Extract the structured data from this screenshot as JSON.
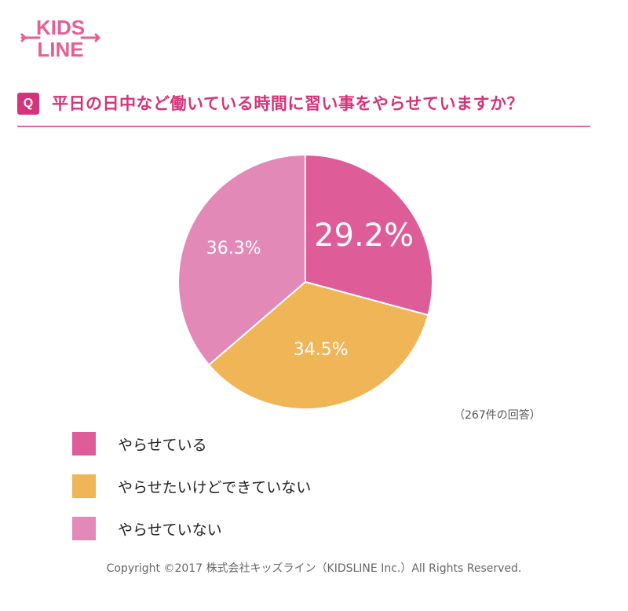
{
  "logo": {
    "line1": "KIDS",
    "line2": "LINE"
  },
  "question": {
    "badge": "Q",
    "text": "平日の日中など働いている時間に習い事をやらせていますか？"
  },
  "chart_data": {
    "type": "pie",
    "categories": [
      "やらせている",
      "やらせたいけどできていない",
      "やらせていない"
    ],
    "values": [
      29.2,
      34.5,
      36.3
    ],
    "labels": [
      "29.2%",
      "34.5%",
      "36.3%"
    ],
    "colors": [
      "#de5c98",
      "#f0b556",
      "#e389b7"
    ],
    "title": "",
    "note": "（267件の回答）",
    "legend_position": "bottom-left"
  },
  "colors": {
    "accent": "#d6337a",
    "rule": "#e06aa0"
  },
  "copyright": "Copyright ©2017 株式会社キッズライン（KIDSLINE Inc.）All Rights Reserved."
}
